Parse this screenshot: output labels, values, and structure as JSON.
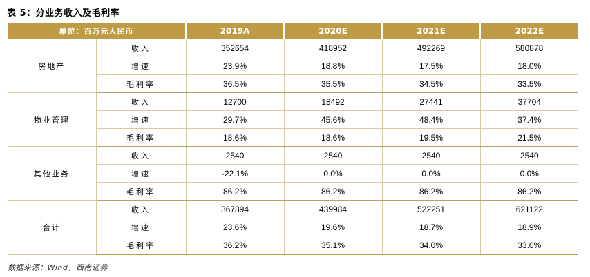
{
  "title": "表 5：分业务收入及毛利率",
  "header": {
    "unit_label": "单位：百万元人民币",
    "years": [
      "2019A",
      "2020E",
      "2021E",
      "2022E"
    ]
  },
  "groups": [
    {
      "name": "房地产",
      "rows": [
        {
          "metric": "收入",
          "values": [
            "352654",
            "418952",
            "492269",
            "580878"
          ]
        },
        {
          "metric": "增速",
          "values": [
            "23.9%",
            "18.8%",
            "17.5%",
            "18.0%"
          ]
        },
        {
          "metric": "毛利率",
          "values": [
            "36.5%",
            "35.5%",
            "34.5%",
            "33.5%"
          ]
        }
      ]
    },
    {
      "name": "物业管理",
      "rows": [
        {
          "metric": "收入",
          "values": [
            "12700",
            "18492",
            "27441",
            "37704"
          ]
        },
        {
          "metric": "增速",
          "values": [
            "29.7%",
            "45.6%",
            "48.4%",
            "37.4%"
          ]
        },
        {
          "metric": "毛利率",
          "values": [
            "18.6%",
            "18.6%",
            "19.5%",
            "21.5%"
          ]
        }
      ]
    },
    {
      "name": "其他业务",
      "rows": [
        {
          "metric": "收入",
          "values": [
            "2540",
            "2540",
            "2540",
            "2540"
          ]
        },
        {
          "metric": "增速",
          "values": [
            "-22.1%",
            "0.0%",
            "0.0%",
            "0.0%"
          ]
        },
        {
          "metric": "毛利率",
          "values": [
            "86.2%",
            "86.2%",
            "86.2%",
            "86.2%"
          ]
        }
      ]
    },
    {
      "name": "合计",
      "rows": [
        {
          "metric": "收入",
          "values": [
            "367894",
            "439984",
            "522251",
            "621122"
          ]
        },
        {
          "metric": "增速",
          "values": [
            "23.6%",
            "19.6%",
            "18.7%",
            "18.9%"
          ]
        },
        {
          "metric": "毛利率",
          "values": [
            "36.2%",
            "35.1%",
            "34.0%",
            "33.0%"
          ]
        }
      ]
    }
  ],
  "source": "数据来源：Wind，西南证券",
  "colors": {
    "header_bg": "#c09b46",
    "border": "#d9c9a1"
  }
}
